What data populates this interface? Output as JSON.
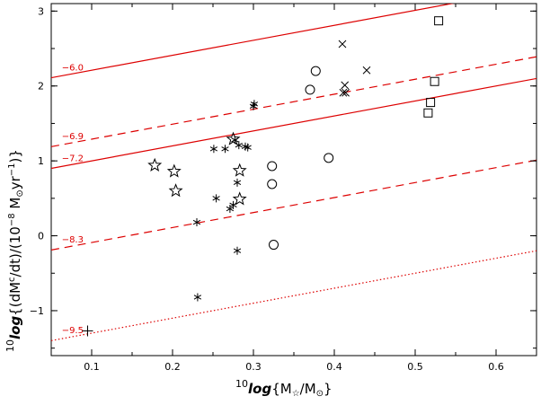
{
  "chart_data": {
    "type": "scatter",
    "xlabel_prefix": "10",
    "xlabel_log": "log",
    "xlabel_body": "{M",
    "xlabel_sub": "☆",
    "xlabel_mid": "/M",
    "xlabel_sub2": "⊙",
    "xlabel_end": "}",
    "ylabel_prefix": "10",
    "ylabel_log": "log",
    "ylabel_body": "{(dM",
    "ylabel_sup1": "c",
    "ylabel_mid": "/dt)/(10",
    "ylabel_sup2": "−8",
    "ylabel_unit": " M",
    "ylabel_sub": "⊙",
    "ylabel_yr": "yr",
    "ylabel_sup3": "−1",
    "ylabel_end": ")}",
    "xlim": [
      0.05,
      0.65
    ],
    "ylim": [
      -1.6,
      3.1
    ],
    "x_ticks": [
      {
        "v": 0.1,
        "label": "0.1"
      },
      {
        "v": 0.2,
        "label": "0.2"
      },
      {
        "v": 0.3,
        "label": "0.3"
      },
      {
        "v": 0.4,
        "label": "0.4"
      },
      {
        "v": 0.5,
        "label": "0.5"
      },
      {
        "v": 0.6,
        "label": "0.6"
      }
    ],
    "y_ticks": [
      {
        "v": -1,
        "label": "−1"
      },
      {
        "v": 0,
        "label": "0"
      },
      {
        "v": 1,
        "label": "1"
      },
      {
        "v": 2,
        "label": "2"
      },
      {
        "v": 3,
        "label": "3"
      }
    ],
    "grid": false,
    "line_color": "#dd0000",
    "lines": [
      {
        "label": "−6.0",
        "style": "solid",
        "x": [
          0.05,
          0.65
        ],
        "y": [
          2.11,
          3.31
        ]
      },
      {
        "label": "−6.9",
        "style": "dashed",
        "x": [
          0.05,
          0.65
        ],
        "y": [
          1.19,
          2.39
        ]
      },
      {
        "label": "−7.2",
        "style": "solid",
        "x": [
          0.05,
          0.65
        ],
        "y": [
          0.9,
          2.1
        ]
      },
      {
        "label": "−8.3",
        "style": "dashed",
        "x": [
          0.05,
          0.65
        ],
        "y": [
          -0.19,
          1.01
        ]
      },
      {
        "label": "−9.5",
        "style": "dotted",
        "x": [
          0.05,
          0.65
        ],
        "y": [
          -1.4,
          -0.2
        ]
      }
    ],
    "series": [
      {
        "marker": "star",
        "points": [
          [
            0.178,
            0.94
          ],
          [
            0.202,
            0.86
          ],
          [
            0.204,
            0.6
          ],
          [
            0.275,
            1.29
          ],
          [
            0.283,
            0.87
          ],
          [
            0.283,
            0.49
          ]
        ]
      },
      {
        "marker": "asterisk",
        "points": [
          [
            0.23,
            0.18
          ],
          [
            0.231,
            -0.82
          ],
          [
            0.251,
            1.16
          ],
          [
            0.254,
            0.5
          ],
          [
            0.265,
            1.16
          ],
          [
            0.271,
            0.36
          ],
          [
            0.275,
            0.41
          ],
          [
            0.277,
            1.28
          ],
          [
            0.28,
            -0.2
          ],
          [
            0.28,
            0.71
          ],
          [
            0.282,
            1.21
          ],
          [
            0.29,
            1.19
          ],
          [
            0.293,
            1.18
          ],
          [
            0.3,
            1.73
          ],
          [
            0.301,
            1.76
          ]
        ]
      },
      {
        "marker": "circle",
        "points": [
          [
            0.323,
            0.93
          ],
          [
            0.323,
            0.69
          ],
          [
            0.325,
            -0.12
          ],
          [
            0.37,
            1.95
          ],
          [
            0.377,
            2.2
          ],
          [
            0.393,
            1.04
          ]
        ]
      },
      {
        "marker": "cross",
        "points": [
          [
            0.41,
            2.56
          ],
          [
            0.411,
            1.91
          ],
          [
            0.413,
            2.01
          ],
          [
            0.414,
            1.91
          ],
          [
            0.44,
            2.21
          ]
        ]
      },
      {
        "marker": "square",
        "points": [
          [
            0.516,
            1.64
          ],
          [
            0.519,
            1.78
          ],
          [
            0.524,
            2.06
          ],
          [
            0.529,
            2.87
          ]
        ]
      },
      {
        "marker": "plus",
        "points": [
          [
            0.095,
            -1.27
          ]
        ]
      }
    ]
  }
}
